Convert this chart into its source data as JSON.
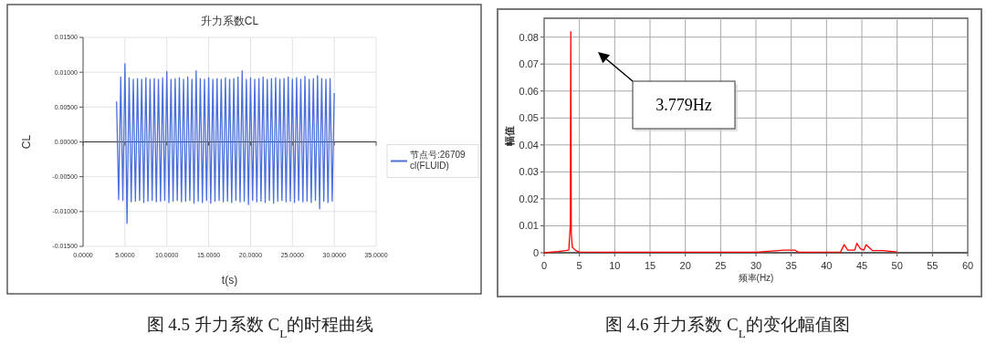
{
  "chart_data": [
    {
      "type": "line",
      "title": "升力系数CL",
      "xlabel": "t(s)",
      "ylabel": "CL",
      "xlim": [
        0,
        35
      ],
      "ylim": [
        -0.015,
        0.015
      ],
      "xticks": [
        {
          "value": 0,
          "label": "0.0000"
        },
        {
          "value": 5,
          "label": "5.0000"
        },
        {
          "value": 10,
          "label": "10.0000"
        },
        {
          "value": 15,
          "label": "15.0000"
        },
        {
          "value": 20,
          "label": "20.0000"
        },
        {
          "value": 25,
          "label": "25.0000"
        },
        {
          "value": 30,
          "label": "30.0000"
        },
        {
          "value": 35,
          "label": "35.0000"
        }
      ],
      "yticks": [
        {
          "value": -0.015,
          "label": "-0.01500"
        },
        {
          "value": -0.01,
          "label": "-0.01000"
        },
        {
          "value": -0.005,
          "label": "-0.00500"
        },
        {
          "value": 0,
          "label": "0.00000"
        },
        {
          "value": 0.005,
          "label": "0.00500"
        },
        {
          "value": 0.01,
          "label": "0.01000"
        },
        {
          "value": 0.015,
          "label": "0.01500"
        }
      ],
      "grid": true,
      "legend": "right",
      "x": [
        4,
        4.25,
        4.5,
        4.75,
        5,
        5.25,
        5.5,
        5.75,
        6,
        6.25,
        6.5,
        6.75,
        7,
        7.25,
        7.5,
        7.75,
        8,
        8.25,
        8.5,
        8.75,
        9,
        9.25,
        9.5,
        9.75,
        10,
        10.25,
        10.5,
        10.75,
        11,
        11.25,
        11.5,
        11.75,
        12,
        12.25,
        12.5,
        12.75,
        13,
        13.25,
        13.5,
        13.75,
        14,
        14.25,
        14.5,
        14.75,
        15,
        15.25,
        15.5,
        15.75,
        16,
        16.25,
        16.5,
        16.75,
        17,
        17.25,
        17.5,
        17.75,
        18,
        18.25,
        18.5,
        18.75,
        19,
        19.25,
        19.5,
        19.75,
        20,
        20.25,
        20.5,
        20.75,
        21,
        21.25,
        21.5,
        21.75,
        22,
        22.25,
        22.5,
        22.75,
        23,
        23.25,
        23.5,
        23.75,
        24,
        24.25,
        24.5,
        24.75,
        25,
        25.25,
        25.5,
        25.75,
        26,
        26.25,
        26.5,
        26.75,
        27,
        27.25,
        27.5,
        27.75,
        28,
        28.25,
        28.5,
        28.75,
        29,
        29.25,
        29.5,
        29.75,
        30
      ],
      "series": [
        {
          "name": "节点号:26709\ncl(FLUID)",
          "color": "#4a6fdc",
          "values": [
            0.0058,
            -0.0083,
            0.0093,
            -0.0084,
            0.0112,
            -0.0117,
            0.0092,
            -0.0086,
            0.009,
            -0.0085,
            0.0091,
            -0.0084,
            0.009,
            -0.0087,
            0.0092,
            -0.0085,
            0.009,
            -0.0084,
            0.0091,
            -0.0086,
            0.009,
            -0.0085,
            0.0092,
            -0.0084,
            0.0101,
            -0.0087,
            0.009,
            -0.0085,
            0.0091,
            -0.0084,
            0.0092,
            -0.0086,
            0.009,
            -0.0085,
            0.0093,
            -0.0084,
            0.009,
            -0.0088,
            0.0102,
            -0.0085,
            0.0091,
            -0.0087,
            0.009,
            -0.0084,
            0.0092,
            -0.0088,
            0.009,
            -0.0085,
            0.0091,
            -0.0084,
            0.009,
            -0.0086,
            0.0092,
            -0.0085,
            0.009,
            -0.0087,
            0.0091,
            -0.0084,
            0.0093,
            -0.0086,
            0.0102,
            -0.0085,
            0.009,
            -0.009,
            0.0092,
            -0.0084,
            0.009,
            -0.0086,
            0.0091,
            -0.0085,
            0.0093,
            -0.0087,
            0.009,
            -0.0084,
            0.0091,
            -0.0088,
            0.0092,
            -0.0085,
            0.009,
            -0.0084,
            0.0091,
            -0.0086,
            0.0093,
            -0.0085,
            0.009,
            -0.0087,
            0.0092,
            -0.0084,
            0.009,
            -0.0086,
            0.0094,
            -0.0085,
            0.009,
            -0.0087,
            0.0091,
            -0.0084,
            0.0095,
            -0.0096,
            0.0091,
            -0.0085,
            0.009,
            -0.0087,
            0.0091,
            -0.0085,
            0.007
          ]
        }
      ],
      "annotations": [
        "图 4.5 升力系数 C$_{L}$的时程曲线"
      ]
    },
    {
      "type": "line",
      "xlabel": "频率(Hz)",
      "ylabel": "幅值",
      "xlim": [
        0,
        60
      ],
      "ylim": [
        0,
        0.087
      ],
      "xticks": [
        0,
        5,
        10,
        15,
        20,
        25,
        30,
        35,
        40,
        45,
        50,
        55,
        60
      ],
      "yticks": [
        0,
        0.01,
        0.02,
        0.03,
        0.04,
        0.05,
        0.06,
        0.07,
        0.08
      ],
      "grid": true,
      "x": [
        0,
        2,
        3.5,
        3.7,
        3.779,
        3.85,
        4,
        4.5,
        5,
        10,
        20,
        30,
        34,
        35.5,
        36,
        42,
        42.5,
        43,
        44,
        44.3,
        44.8,
        45.3,
        45.6,
        46,
        46.5,
        48,
        50
      ],
      "series": [
        {
          "color": "#ff0000",
          "values": [
            0,
            0.0005,
            0.001,
            0.01,
            0.082,
            0.007,
            0.002,
            0.0008,
            0.0003,
            0.0002,
            0.0002,
            0.0002,
            0.001,
            0.001,
            0.0002,
            0.0003,
            0.003,
            0.001,
            0.001,
            0.0035,
            0.0015,
            0.001,
            0.003,
            0.002,
            0.0008,
            0.0008,
            0.0003
          ]
        }
      ],
      "annotations": [
        "3.779Hz",
        "图 4.6 升力系数 C$_{L}$的变化幅值图"
      ]
    }
  ]
}
